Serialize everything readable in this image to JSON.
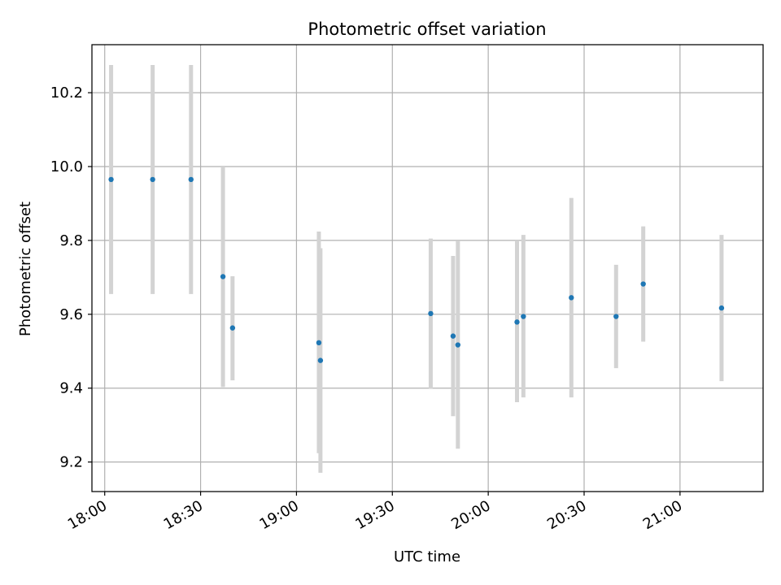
{
  "chart_data": {
    "type": "scatter",
    "title": "Photometric offset variation",
    "xlabel": "UTC time",
    "ylabel": "Photometric offset",
    "x_ticks": [
      "18:00",
      "18:30",
      "19:00",
      "19:30",
      "20:00",
      "20:30",
      "21:00"
    ],
    "y_ticks": [
      "9.2",
      "9.4",
      "9.6",
      "9.8",
      "10.0",
      "10.2"
    ],
    "xlim": [
      "17:56",
      "21:26"
    ],
    "ylim": [
      9.12,
      10.33
    ],
    "grid": true,
    "point_color": "#1f77b4",
    "errorbar_color": "#d3d3d3",
    "points": [
      {
        "x": "18:02",
        "y": 9.965,
        "ylow": 9.655,
        "yhigh": 10.275
      },
      {
        "x": "18:15",
        "y": 9.965,
        "ylow": 9.655,
        "yhigh": 10.275
      },
      {
        "x": "18:27",
        "y": 9.965,
        "ylow": 9.655,
        "yhigh": 10.275
      },
      {
        "x": "18:37",
        "y": 9.702,
        "ylow": 9.403,
        "yhigh": 10.0
      },
      {
        "x": "18:40",
        "y": 9.563,
        "ylow": 9.421,
        "yhigh": 9.703
      },
      {
        "x": "19:07",
        "y": 9.523,
        "ylow": 9.224,
        "yhigh": 9.824
      },
      {
        "x": "19:07.5",
        "y": 9.475,
        "ylow": 9.171,
        "yhigh": 9.779
      },
      {
        "x": "19:42",
        "y": 9.602,
        "ylow": 9.399,
        "yhigh": 9.805
      },
      {
        "x": "19:49",
        "y": 9.541,
        "ylow": 9.324,
        "yhigh": 9.758
      },
      {
        "x": "19:50.5",
        "y": 9.517,
        "ylow": 9.236,
        "yhigh": 9.798
      },
      {
        "x": "20:09",
        "y": 9.579,
        "ylow": 9.362,
        "yhigh": 9.8
      },
      {
        "x": "20:11",
        "y": 9.594,
        "ylow": 9.375,
        "yhigh": 9.815
      },
      {
        "x": "20:26",
        "y": 9.645,
        "ylow": 9.375,
        "yhigh": 9.915
      },
      {
        "x": "20:40",
        "y": 9.594,
        "ylow": 9.454,
        "yhigh": 9.734
      },
      {
        "x": "20:48.5",
        "y": 9.682,
        "ylow": 9.526,
        "yhigh": 9.838
      },
      {
        "x": "21:13",
        "y": 9.617,
        "ylow": 9.419,
        "yhigh": 9.815
      }
    ]
  }
}
